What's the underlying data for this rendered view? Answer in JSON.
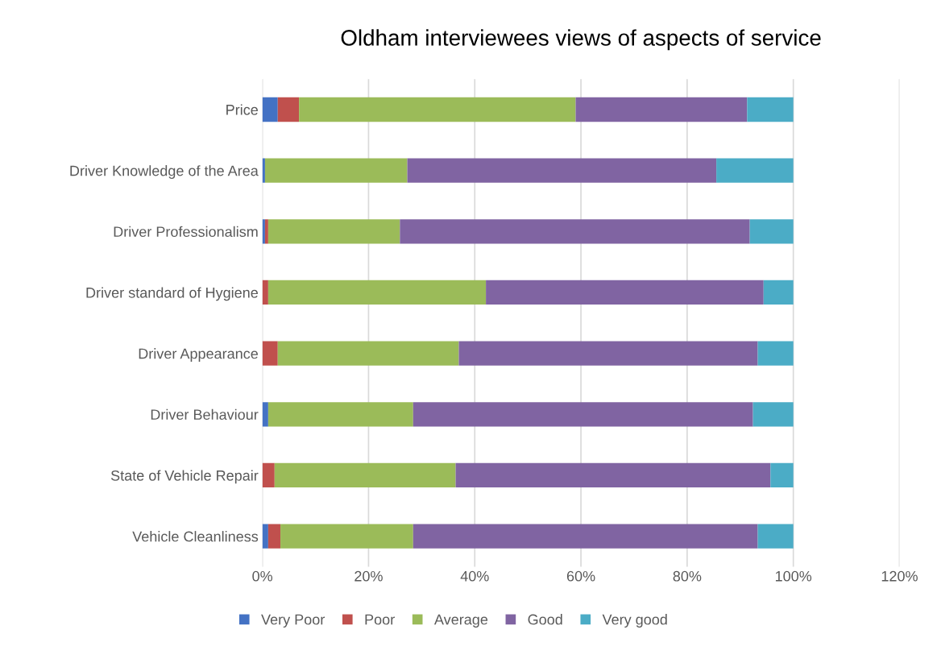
{
  "chart_data": {
    "type": "bar",
    "orientation": "horizontal",
    "stacked": true,
    "title": "Oldham interviewees views of aspects of service",
    "categories": [
      "Price",
      "Driver Knowledge of the Area",
      "Driver Professionalism",
      "Driver standard of Hygiene",
      "Driver Appearance",
      "Driver Behaviour",
      "State of Vehicle Repair",
      "Vehicle Cleanliness"
    ],
    "series": [
      {
        "name": "Very Poor",
        "color": "#4472c4",
        "values": [
          2.9,
          0.5,
          0.5,
          0,
          0,
          1.1,
          0,
          1.1
        ]
      },
      {
        "name": "Poor",
        "color": "#c0504d",
        "values": [
          4.0,
          0,
          0.6,
          1.1,
          2.9,
          0,
          2.3,
          2.3
        ]
      },
      {
        "name": "Average",
        "color": "#9bbb59",
        "values": [
          52.1,
          26.8,
          24.8,
          41.0,
          34.1,
          27.3,
          34.1,
          25.0
        ]
      },
      {
        "name": "Good",
        "color": "#8064a2",
        "values": [
          32.3,
          58.2,
          65.9,
          52.3,
          56.3,
          64.0,
          59.3,
          64.9
        ]
      },
      {
        "name": "Very good",
        "color": "#4bacc6",
        "values": [
          8.7,
          14.5,
          8.2,
          5.6,
          6.7,
          7.6,
          4.3,
          6.7
        ]
      }
    ],
    "xlim": [
      0,
      120
    ],
    "xticks": [
      {
        "value": 0,
        "label": "0%"
      },
      {
        "value": 20,
        "label": "20%"
      },
      {
        "value": 40,
        "label": "40%"
      },
      {
        "value": 60,
        "label": "60%"
      },
      {
        "value": 80,
        "label": "80%"
      },
      {
        "value": 100,
        "label": "100%"
      },
      {
        "value": 120,
        "label": "120%"
      }
    ],
    "grid": "x",
    "legend": "bottom"
  }
}
